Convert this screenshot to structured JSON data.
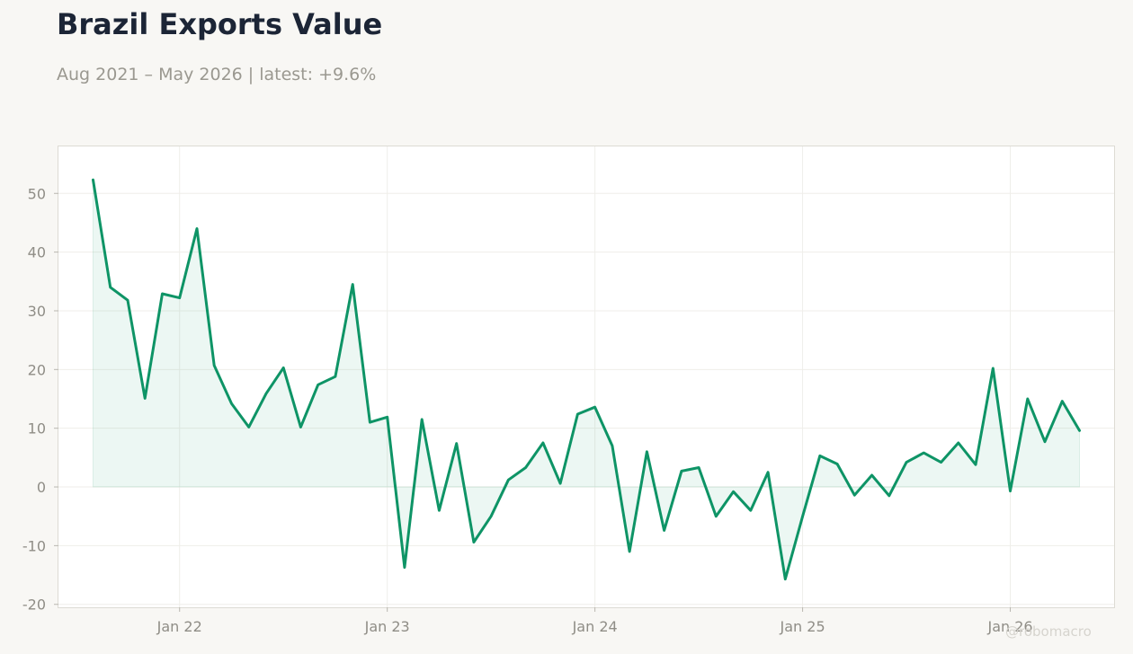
{
  "title": "Brazil Exports Value",
  "subtitle": "Aug 2021 – May 2026 | latest: +9.6%",
  "watermark": "@robomacro",
  "colors": {
    "line": "#0e9466",
    "fill": "#0e9466",
    "background": "#f8f7f4",
    "plot_background": "#ffffff"
  },
  "chart_data": {
    "type": "area",
    "title": "Brazil Exports Value",
    "xlabel": "",
    "ylabel": "",
    "x_tick_labels": [
      "Jan 22",
      "Jan 23",
      "Jan 24",
      "Jan 25",
      "Jan 26"
    ],
    "x_ticks": [
      "2022-01",
      "2023-01",
      "2024-01",
      "2025-01",
      "2026-01"
    ],
    "y_ticks": [
      50,
      40,
      30,
      20,
      10,
      0,
      -10,
      -20
    ],
    "ylim": [
      -20.5,
      58
    ],
    "xlim": [
      "2021-06",
      "2026-07"
    ],
    "grid": true,
    "series": [
      {
        "x": [
          "2021-08",
          "2021-09",
          "2021-10",
          "2021-11",
          "2021-12",
          "2022-01",
          "2022-02",
          "2022-03",
          "2022-04",
          "2022-05",
          "2022-06",
          "2022-07",
          "2022-08",
          "2022-09",
          "2022-10",
          "2022-11",
          "2022-12",
          "2023-01",
          "2023-02",
          "2023-03",
          "2023-04",
          "2023-05",
          "2023-06",
          "2023-07",
          "2023-08",
          "2023-09",
          "2023-10",
          "2023-11",
          "2023-12",
          "2024-01",
          "2024-02",
          "2024-03",
          "2024-04",
          "2024-05",
          "2024-06",
          "2024-07",
          "2024-08",
          "2024-09",
          "2024-10",
          "2024-11",
          "2024-12",
          "2025-01",
          "2025-02",
          "2025-03",
          "2025-04",
          "2025-05",
          "2025-06",
          "2025-07",
          "2025-08",
          "2025-09",
          "2025-10",
          "2025-11",
          "2025-12",
          "2026-01",
          "2026-02",
          "2026-03",
          "2026-04",
          "2026-05"
        ],
        "values": [
          52.3,
          34.0,
          31.8,
          15.1,
          32.9,
          32.2,
          44.0,
          20.7,
          14.2,
          10.2,
          15.9,
          20.3,
          10.2,
          17.4,
          18.8,
          34.5,
          11.0,
          11.9,
          -13.7,
          11.5,
          -4.0,
          7.4,
          -9.4,
          -5.0,
          1.2,
          3.3,
          7.5,
          0.6,
          12.4,
          13.6,
          7.0,
          -11.0,
          6.0,
          -7.4,
          2.7,
          3.3,
          -5.0,
          -0.8,
          -4.0,
          2.5,
          -15.7,
          -5.0,
          5.3,
          3.9,
          -1.4,
          2.0,
          -1.5,
          4.2,
          5.8,
          4.2,
          7.5,
          3.8,
          20.2,
          -0.7,
          15.0,
          7.7,
          14.6,
          9.6
        ]
      }
    ]
  }
}
